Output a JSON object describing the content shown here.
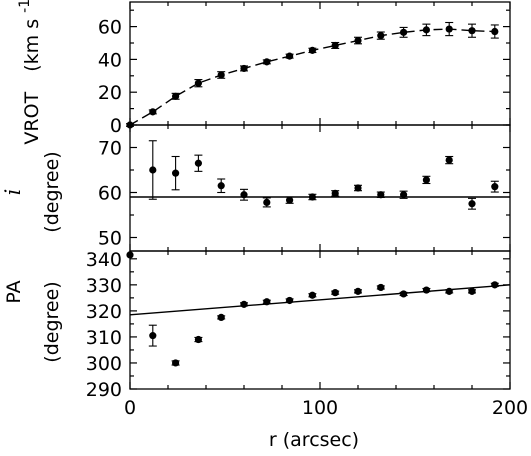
{
  "chart_data": [
    {
      "type": "scatter",
      "panel": "top",
      "ylabel_parts": [
        "VROT",
        "(km s",
        "-1",
        ")"
      ],
      "xlim": [
        0,
        200
      ],
      "ylim": [
        0,
        75
      ],
      "yticks": [
        0,
        20,
        40,
        60
      ],
      "points": [
        {
          "x": 0,
          "y": 0,
          "err": 0.8
        },
        {
          "x": 12,
          "y": 8,
          "err": 1.2
        },
        {
          "x": 24,
          "y": 17.5,
          "err": 1.8
        },
        {
          "x": 36,
          "y": 25.5,
          "err": 2.2
        },
        {
          "x": 48,
          "y": 30.5,
          "err": 2
        },
        {
          "x": 60,
          "y": 34.5,
          "err": 1.5
        },
        {
          "x": 72,
          "y": 38.5,
          "err": 1.2
        },
        {
          "x": 84,
          "y": 42,
          "err": 1.2
        },
        {
          "x": 96,
          "y": 45.5,
          "err": 1.3
        },
        {
          "x": 108,
          "y": 48.5,
          "err": 1.8
        },
        {
          "x": 120,
          "y": 51.5,
          "err": 2
        },
        {
          "x": 132,
          "y": 54.5,
          "err": 2.2
        },
        {
          "x": 144,
          "y": 56.5,
          "err": 3
        },
        {
          "x": 156,
          "y": 58,
          "err": 3.5
        },
        {
          "x": 168,
          "y": 58.5,
          "err": 4
        },
        {
          "x": 180,
          "y": 57.5,
          "err": 4
        },
        {
          "x": 192,
          "y": 57,
          "err": 4
        }
      ]
    },
    {
      "type": "scatter",
      "panel": "middle",
      "ylabel_symbol": "i",
      "ylabel_unit": "(degree)",
      "xlim": [
        0,
        200
      ],
      "ylim": [
        47,
        75
      ],
      "yticks": [
        50,
        60,
        70
      ],
      "fit_line": {
        "x": [
          0,
          200
        ],
        "y": [
          59,
          59
        ]
      },
      "points": [
        {
          "x": 12,
          "y": 65,
          "err": 6.5
        },
        {
          "x": 24,
          "y": 64.3,
          "err": 3.7
        },
        {
          "x": 36,
          "y": 66.5,
          "err": 1.8
        },
        {
          "x": 48,
          "y": 61.5,
          "err": 1.5
        },
        {
          "x": 60,
          "y": 59.5,
          "err": 1.2
        },
        {
          "x": 72,
          "y": 57.8,
          "err": 1
        },
        {
          "x": 84,
          "y": 58.3,
          "err": 0.7
        },
        {
          "x": 96,
          "y": 59,
          "err": 0.6
        },
        {
          "x": 108,
          "y": 59.8,
          "err": 0.6
        },
        {
          "x": 120,
          "y": 61,
          "err": 0.6
        },
        {
          "x": 132,
          "y": 59.5,
          "err": 0.6
        },
        {
          "x": 144,
          "y": 59.5,
          "err": 0.8
        },
        {
          "x": 156,
          "y": 62.8,
          "err": 0.8
        },
        {
          "x": 168,
          "y": 67.2,
          "err": 0.8
        },
        {
          "x": 180,
          "y": 57.5,
          "err": 1.2
        },
        {
          "x": 192,
          "y": 61.3,
          "err": 1.2
        }
      ]
    },
    {
      "type": "scatter",
      "panel": "bottom",
      "ylabel_symbol": "PA",
      "ylabel_unit": "(degree)",
      "xlabel": "r (arcsec)",
      "xlim": [
        0,
        200
      ],
      "ylim": [
        290,
        343
      ],
      "yticks": [
        290,
        300,
        310,
        320,
        330,
        340
      ],
      "xticks": [
        0,
        100,
        200
      ],
      "fit_line": {
        "x": [
          0,
          200
        ],
        "y": [
          318.5,
          330
        ]
      },
      "points": [
        {
          "x": 0,
          "y": 341.5,
          "err": 0
        },
        {
          "x": 12,
          "y": 310.5,
          "err": 4
        },
        {
          "x": 24,
          "y": 300,
          "err": 0.8
        },
        {
          "x": 36,
          "y": 309,
          "err": 0.8
        },
        {
          "x": 48,
          "y": 317.5,
          "err": 0.6
        },
        {
          "x": 60,
          "y": 322.5,
          "err": 0.6
        },
        {
          "x": 72,
          "y": 323.5,
          "err": 0.6
        },
        {
          "x": 84,
          "y": 324,
          "err": 0.6
        },
        {
          "x": 96,
          "y": 326,
          "err": 0.6
        },
        {
          "x": 108,
          "y": 327,
          "err": 0.6
        },
        {
          "x": 120,
          "y": 327.5,
          "err": 0.6
        },
        {
          "x": 132,
          "y": 329,
          "err": 0.6
        },
        {
          "x": 144,
          "y": 326.5,
          "err": 0.6
        },
        {
          "x": 156,
          "y": 328,
          "err": 0.6
        },
        {
          "x": 168,
          "y": 327.5,
          "err": 0.6
        },
        {
          "x": 180,
          "y": 327.5,
          "err": 0.6
        },
        {
          "x": 192,
          "y": 330,
          "err": 0.6
        }
      ]
    }
  ]
}
